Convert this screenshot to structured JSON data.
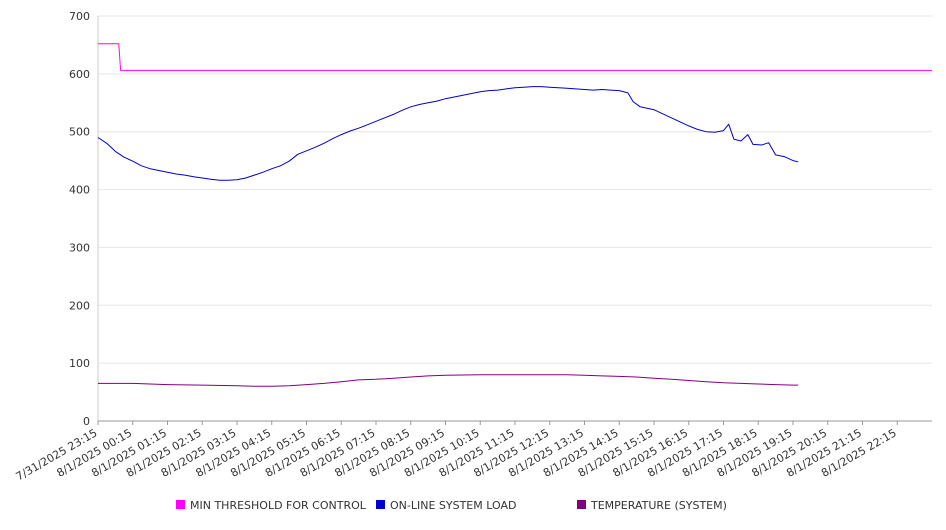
{
  "chart_data": {
    "type": "line",
    "title": "",
    "xlabel": "",
    "ylabel": "",
    "ylim": [
      0,
      700
    ],
    "yticks": [
      0,
      100,
      200,
      300,
      400,
      500,
      600,
      700
    ],
    "categories": [
      "7/31/2025 23:15",
      "8/1/2025 00:15",
      "8/1/2025 01:15",
      "8/1/2025 02:15",
      "8/1/2025 03:15",
      "8/1/2025 04:15",
      "8/1/2025 05:15",
      "8/1/2025 06:15",
      "8/1/2025 07:15",
      "8/1/2025 08:15",
      "8/1/2025 09:15",
      "8/1/2025 10:15",
      "8/1/2025 11:15",
      "8/1/2025 12:15",
      "8/1/2025 13:15",
      "8/1/2025 14:15",
      "8/1/2025 15:15",
      "8/1/2025 16:15",
      "8/1/2025 17:15",
      "8/1/2025 18:15",
      "8/1/2025 19:15",
      "8/1/2025 20:15",
      "8/1/2025 21:15",
      "8/1/2025 22:15"
    ],
    "series": [
      {
        "name": "MIN THRESHOLD FOR CONTROL",
        "color": "#ff00ff",
        "points": [
          [
            0,
            652
          ],
          [
            0.6,
            652
          ],
          [
            0.65,
            606
          ],
          [
            24,
            606
          ]
        ]
      },
      {
        "name": "ON-LINE SYSTEM LOAD",
        "color": "#0000cc",
        "points": [
          [
            0,
            490
          ],
          [
            0.25,
            480
          ],
          [
            0.5,
            466
          ],
          [
            0.75,
            456
          ],
          [
            1,
            449
          ],
          [
            1.25,
            441
          ],
          [
            1.5,
            436
          ],
          [
            1.75,
            433
          ],
          [
            2,
            430
          ],
          [
            2.25,
            427
          ],
          [
            2.5,
            425
          ],
          [
            2.75,
            422
          ],
          [
            3,
            420
          ],
          [
            3.25,
            418
          ],
          [
            3.5,
            416
          ],
          [
            3.75,
            416
          ],
          [
            4,
            417
          ],
          [
            4.25,
            420
          ],
          [
            4.5,
            425
          ],
          [
            4.75,
            430
          ],
          [
            5,
            436
          ],
          [
            5.25,
            441
          ],
          [
            5.5,
            449
          ],
          [
            5.75,
            461
          ],
          [
            6,
            467
          ],
          [
            6.25,
            473
          ],
          [
            6.5,
            480
          ],
          [
            6.75,
            488
          ],
          [
            7,
            495
          ],
          [
            7.25,
            501
          ],
          [
            7.5,
            506
          ],
          [
            7.75,
            512
          ],
          [
            8,
            518
          ],
          [
            8.25,
            524
          ],
          [
            8.5,
            530
          ],
          [
            8.75,
            537
          ],
          [
            9,
            543
          ],
          [
            9.25,
            547
          ],
          [
            9.5,
            550
          ],
          [
            9.75,
            553
          ],
          [
            10,
            557
          ],
          [
            10.25,
            560
          ],
          [
            10.5,
            563
          ],
          [
            10.75,
            566
          ],
          [
            11,
            569
          ],
          [
            11.25,
            571
          ],
          [
            11.5,
            572
          ],
          [
            11.75,
            574
          ],
          [
            12,
            576
          ],
          [
            12.25,
            577
          ],
          [
            12.5,
            578
          ],
          [
            12.75,
            578
          ],
          [
            13,
            577
          ],
          [
            13.25,
            576
          ],
          [
            13.5,
            575
          ],
          [
            13.75,
            574
          ],
          [
            14,
            573
          ],
          [
            14.25,
            572
          ],
          [
            14.5,
            573
          ],
          [
            14.75,
            572
          ],
          [
            15,
            571
          ],
          [
            15.25,
            567
          ],
          [
            15.4,
            552
          ],
          [
            15.6,
            543
          ],
          [
            16,
            538
          ],
          [
            16.25,
            531
          ],
          [
            16.5,
            524
          ],
          [
            16.75,
            517
          ],
          [
            17,
            510
          ],
          [
            17.25,
            504
          ],
          [
            17.5,
            500
          ],
          [
            17.75,
            499
          ],
          [
            18,
            502
          ],
          [
            18.15,
            513
          ],
          [
            18.3,
            487
          ],
          [
            18.5,
            484
          ],
          [
            18.7,
            495
          ],
          [
            18.85,
            478
          ],
          [
            19.1,
            477
          ],
          [
            19.3,
            481
          ],
          [
            19.5,
            460
          ],
          [
            19.75,
            457
          ],
          [
            20,
            450
          ],
          [
            20.15,
            448
          ]
        ]
      },
      {
        "name": "TEMPERATURE (SYSTEM)",
        "color": "#800080",
        "points": [
          [
            0,
            65
          ],
          [
            1,
            65
          ],
          [
            2,
            63
          ],
          [
            3,
            62
          ],
          [
            4,
            61
          ],
          [
            4.5,
            60
          ],
          [
            5,
            60
          ],
          [
            5.5,
            61
          ],
          [
            6,
            63
          ],
          [
            6.5,
            65
          ],
          [
            7,
            68
          ],
          [
            7.5,
            71
          ],
          [
            8,
            72
          ],
          [
            8.5,
            74
          ],
          [
            9,
            76
          ],
          [
            9.5,
            78
          ],
          [
            10,
            79
          ],
          [
            11,
            80
          ],
          [
            12,
            80
          ],
          [
            13,
            80
          ],
          [
            13.5,
            80
          ],
          [
            14,
            79
          ],
          [
            14.5,
            78
          ],
          [
            15,
            77
          ],
          [
            15.5,
            76
          ],
          [
            16,
            74
          ],
          [
            16.5,
            72
          ],
          [
            17,
            70
          ],
          [
            17.5,
            68
          ],
          [
            18,
            66
          ],
          [
            18.5,
            65
          ],
          [
            19,
            64
          ],
          [
            19.5,
            63
          ],
          [
            20,
            62
          ],
          [
            20.15,
            62
          ]
        ]
      }
    ],
    "legend": {
      "position": "bottom",
      "items": [
        {
          "label": "MIN THRESHOLD FOR CONTROL",
          "color": "#ff00ff"
        },
        {
          "label": "ON-LINE SYSTEM LOAD",
          "color": "#0000cc"
        },
        {
          "label": "TEMPERATURE (SYSTEM)",
          "color": "#800080"
        }
      ]
    },
    "grid": true
  }
}
